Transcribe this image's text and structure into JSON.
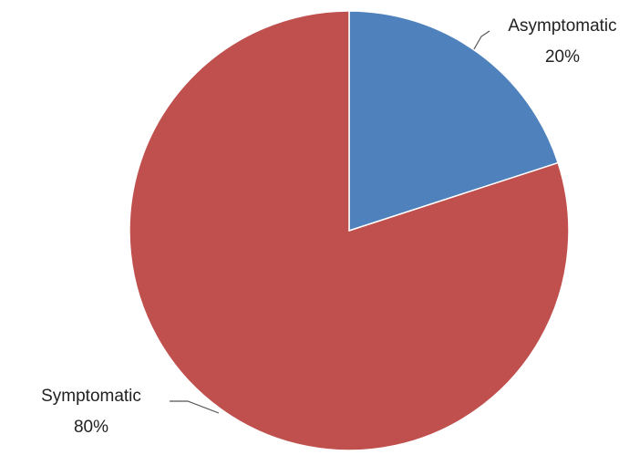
{
  "chart_data": {
    "type": "pie",
    "title": "",
    "legend": "none",
    "slices": [
      {
        "label": "Asymptomatic",
        "value": 20,
        "value_label": "20%",
        "color": "#4f81bd"
      },
      {
        "label": "Symptomatic",
        "value": 80,
        "value_label": "80%",
        "color": "#c0504d"
      }
    ]
  }
}
